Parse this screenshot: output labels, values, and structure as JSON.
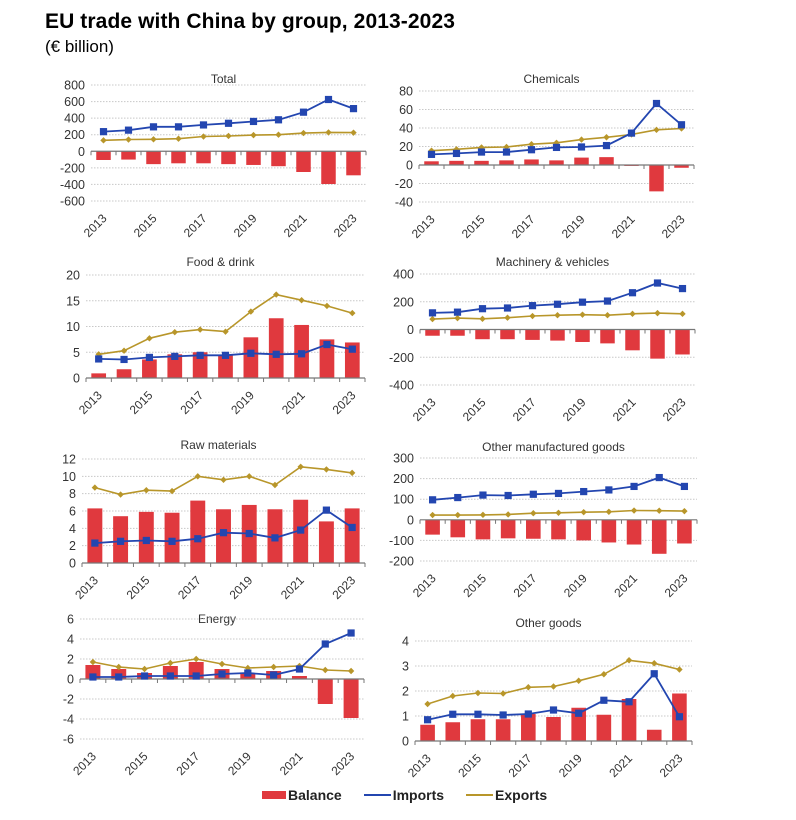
{
  "title": "EU trade with China by group, 2013-2023",
  "subtitle": "(€ billion)",
  "colors": {
    "balance": "#e0393e",
    "imports": "#2346b0",
    "exports": "#b8962a"
  },
  "legend": [
    {
      "key": "balance",
      "label": "Balance",
      "marker": "bar"
    },
    {
      "key": "imports",
      "label": "Imports",
      "marker": "line"
    },
    {
      "key": "exports",
      "label": "Exports",
      "marker": "line"
    }
  ],
  "chart_data": [
    {
      "type": "bar+line",
      "title": "Total",
      "x": [
        2013,
        2014,
        2015,
        2016,
        2017,
        2018,
        2019,
        2020,
        2021,
        2022,
        2023
      ],
      "xticks": [
        "2013",
        "2015",
        "2017",
        "2019",
        "2021",
        "2023"
      ],
      "yticks": [
        800,
        600,
        400,
        200,
        0,
        -200,
        -400,
        -600
      ],
      "ylim": [
        -600,
        800
      ],
      "grid": true,
      "series": [
        {
          "name": "Balance",
          "kind": "bar",
          "values": [
            -105,
            -100,
            -155,
            -145,
            -145,
            -155,
            -165,
            -180,
            -250,
            -395,
            -290
          ]
        },
        {
          "name": "Imports",
          "kind": "line",
          "values": [
            237,
            255,
            295,
            295,
            318,
            338,
            360,
            380,
            472,
            625,
            515
          ]
        },
        {
          "name": "Exports",
          "kind": "line",
          "values": [
            132,
            142,
            145,
            152,
            178,
            185,
            195,
            200,
            220,
            228,
            225
          ]
        }
      ]
    },
    {
      "type": "bar+line",
      "title": "Chemicals",
      "x": [
        2013,
        2014,
        2015,
        2016,
        2017,
        2018,
        2019,
        2020,
        2021,
        2022,
        2023
      ],
      "xticks": [
        "2013",
        "2015",
        "2017",
        "2019",
        "2021",
        "2023"
      ],
      "yticks": [
        80,
        60,
        40,
        20,
        0,
        -20,
        -40
      ],
      "ylim": [
        -40,
        80
      ],
      "grid": true,
      "series": [
        {
          "name": "Balance",
          "kind": "bar",
          "values": [
            4,
            4.5,
            4.5,
            5,
            6,
            5,
            8,
            8.5,
            -1,
            -28.5,
            -3
          ]
        },
        {
          "name": "Imports",
          "kind": "line",
          "values": [
            11.5,
            12.5,
            14,
            14,
            16.5,
            19,
            19.5,
            21,
            34.5,
            66.5,
            43.5
          ]
        },
        {
          "name": "Exports",
          "kind": "line",
          "values": [
            15.5,
            17,
            19,
            19.5,
            22.5,
            24,
            27.5,
            30,
            33,
            38,
            39.5
          ]
        }
      ]
    },
    {
      "type": "bar+line",
      "title": "Food & drink",
      "x": [
        2013,
        2014,
        2015,
        2016,
        2017,
        2018,
        2019,
        2020,
        2021,
        2022,
        2023
      ],
      "xticks": [
        "2013",
        "2015",
        "2017",
        "2019",
        "2021",
        "2023"
      ],
      "yticks": [
        20,
        15,
        10,
        5,
        0
      ],
      "ylim": [
        0,
        20
      ],
      "grid": true,
      "series": [
        {
          "name": "Balance",
          "kind": "bar",
          "values": [
            0.9,
            1.7,
            3.6,
            4.6,
            5.0,
            4.5,
            7.9,
            11.6,
            10.3,
            7.5,
            6.9
          ]
        },
        {
          "name": "Imports",
          "kind": "line",
          "values": [
            3.7,
            3.6,
            4.0,
            4.2,
            4.4,
            4.4,
            4.8,
            4.6,
            4.7,
            6.5,
            5.6
          ]
        },
        {
          "name": "Exports",
          "kind": "line",
          "values": [
            4.6,
            5.3,
            7.7,
            8.9,
            9.4,
            9.0,
            12.9,
            16.2,
            15.1,
            14.0,
            12.6
          ]
        }
      ]
    },
    {
      "type": "bar+line",
      "title": "Machinery & vehicles",
      "x": [
        2013,
        2014,
        2015,
        2016,
        2017,
        2018,
        2019,
        2020,
        2021,
        2022,
        2023
      ],
      "xticks": [
        "2013",
        "2015",
        "2017",
        "2019",
        "2021",
        "2023"
      ],
      "yticks": [
        400,
        200,
        0,
        -200,
        -400
      ],
      "ylim": [
        -400,
        400
      ],
      "grid": true,
      "series": [
        {
          "name": "Balance",
          "kind": "bar",
          "values": [
            -45,
            -45,
            -70,
            -70,
            -75,
            -80,
            -90,
            -100,
            -150,
            -210,
            -180
          ]
        },
        {
          "name": "Imports",
          "kind": "line",
          "values": [
            120,
            125,
            150,
            155,
            172,
            182,
            197,
            205,
            265,
            335,
            295
          ]
        },
        {
          "name": "Exports",
          "kind": "line",
          "values": [
            75,
            82,
            77,
            85,
            97,
            103,
            107,
            103,
            113,
            118,
            113
          ]
        }
      ]
    },
    {
      "type": "bar+line",
      "title": "Raw materials",
      "x": [
        2013,
        2014,
        2015,
        2016,
        2017,
        2018,
        2019,
        2020,
        2021,
        2022,
        2023
      ],
      "xticks": [
        "2013",
        "2015",
        "2017",
        "2019",
        "2021",
        "2023"
      ],
      "yticks": [
        12,
        10,
        8,
        6,
        4,
        2,
        0
      ],
      "ylim": [
        0,
        12
      ],
      "grid": true,
      "series": [
        {
          "name": "Balance",
          "kind": "bar",
          "values": [
            6.3,
            5.4,
            5.9,
            5.8,
            7.2,
            6.2,
            6.7,
            6.2,
            7.3,
            4.8,
            6.3
          ]
        },
        {
          "name": "Imports",
          "kind": "line",
          "values": [
            2.3,
            2.5,
            2.6,
            2.5,
            2.8,
            3.5,
            3.4,
            2.9,
            3.8,
            6.1,
            4.1
          ]
        },
        {
          "name": "Exports",
          "kind": "line",
          "values": [
            8.7,
            7.9,
            8.4,
            8.3,
            10.0,
            9.6,
            10.0,
            9.0,
            11.1,
            10.8,
            10.4
          ]
        }
      ]
    },
    {
      "type": "bar+line",
      "title": "Other manufactured goods",
      "x": [
        2013,
        2014,
        2015,
        2016,
        2017,
        2018,
        2019,
        2020,
        2021,
        2022,
        2023
      ],
      "xticks": [
        "2013",
        "2015",
        "2017",
        "2019",
        "2021",
        "2023"
      ],
      "yticks": [
        300,
        200,
        100,
        0,
        -100,
        -200
      ],
      "ylim": [
        -200,
        300
      ],
      "grid": true,
      "series": [
        {
          "name": "Balance",
          "kind": "bar",
          "values": [
            -72,
            -85,
            -95,
            -90,
            -92,
            -95,
            -100,
            -110,
            -120,
            -165,
            -115
          ]
        },
        {
          "name": "Imports",
          "kind": "line",
          "values": [
            97,
            108,
            120,
            118,
            124,
            128,
            137,
            145,
            162,
            205,
            162
          ]
        },
        {
          "name": "Exports",
          "kind": "line",
          "values": [
            23,
            23,
            24,
            26,
            32,
            34,
            37,
            39,
            45,
            44,
            42
          ]
        }
      ]
    },
    {
      "type": "bar+line",
      "title": "Energy",
      "x": [
        2013,
        2014,
        2015,
        2016,
        2017,
        2018,
        2019,
        2020,
        2021,
        2022,
        2023
      ],
      "xticks": [
        "2013",
        "2015",
        "2017",
        "2019",
        "2021",
        "2023"
      ],
      "yticks": [
        6,
        4,
        2,
        0,
        -2,
        -4,
        -6
      ],
      "ylim": [
        -6,
        6
      ],
      "grid": true,
      "series": [
        {
          "name": "Balance",
          "kind": "bar",
          "values": [
            1.4,
            1.0,
            0.6,
            1.3,
            1.7,
            1.0,
            0.5,
            0.8,
            0.3,
            -2.5,
            -3.9
          ]
        },
        {
          "name": "Imports",
          "kind": "line",
          "values": [
            0.2,
            0.2,
            0.3,
            0.3,
            0.3,
            0.5,
            0.6,
            0.4,
            1.0,
            3.5,
            4.6
          ]
        },
        {
          "name": "Exports",
          "kind": "line",
          "values": [
            1.7,
            1.2,
            1.0,
            1.6,
            2.0,
            1.5,
            1.1,
            1.2,
            1.3,
            0.9,
            0.8
          ]
        }
      ]
    },
    {
      "type": "bar+line",
      "title": "Other goods",
      "x": [
        2013,
        2014,
        2015,
        2016,
        2017,
        2018,
        2019,
        2020,
        2021,
        2022,
        2023
      ],
      "xticks": [
        "2013",
        "2015",
        "2017",
        "2019",
        "2021",
        "2023"
      ],
      "yticks": [
        4,
        3,
        2,
        1,
        0
      ],
      "ylim": [
        0,
        4
      ],
      "grid": true,
      "series": [
        {
          "name": "Balance",
          "kind": "bar",
          "values": [
            0.65,
            0.75,
            0.87,
            0.87,
            1.08,
            0.96,
            1.33,
            1.05,
            1.68,
            0.45,
            1.9
          ]
        },
        {
          "name": "Imports",
          "kind": "line",
          "values": [
            0.85,
            1.07,
            1.07,
            1.04,
            1.08,
            1.24,
            1.11,
            1.63,
            1.57,
            2.69,
            0.97
          ]
        },
        {
          "name": "Exports",
          "kind": "line",
          "values": [
            1.48,
            1.8,
            1.92,
            1.9,
            2.15,
            2.18,
            2.41,
            2.67,
            3.23,
            3.11,
            2.86
          ]
        }
      ]
    }
  ]
}
